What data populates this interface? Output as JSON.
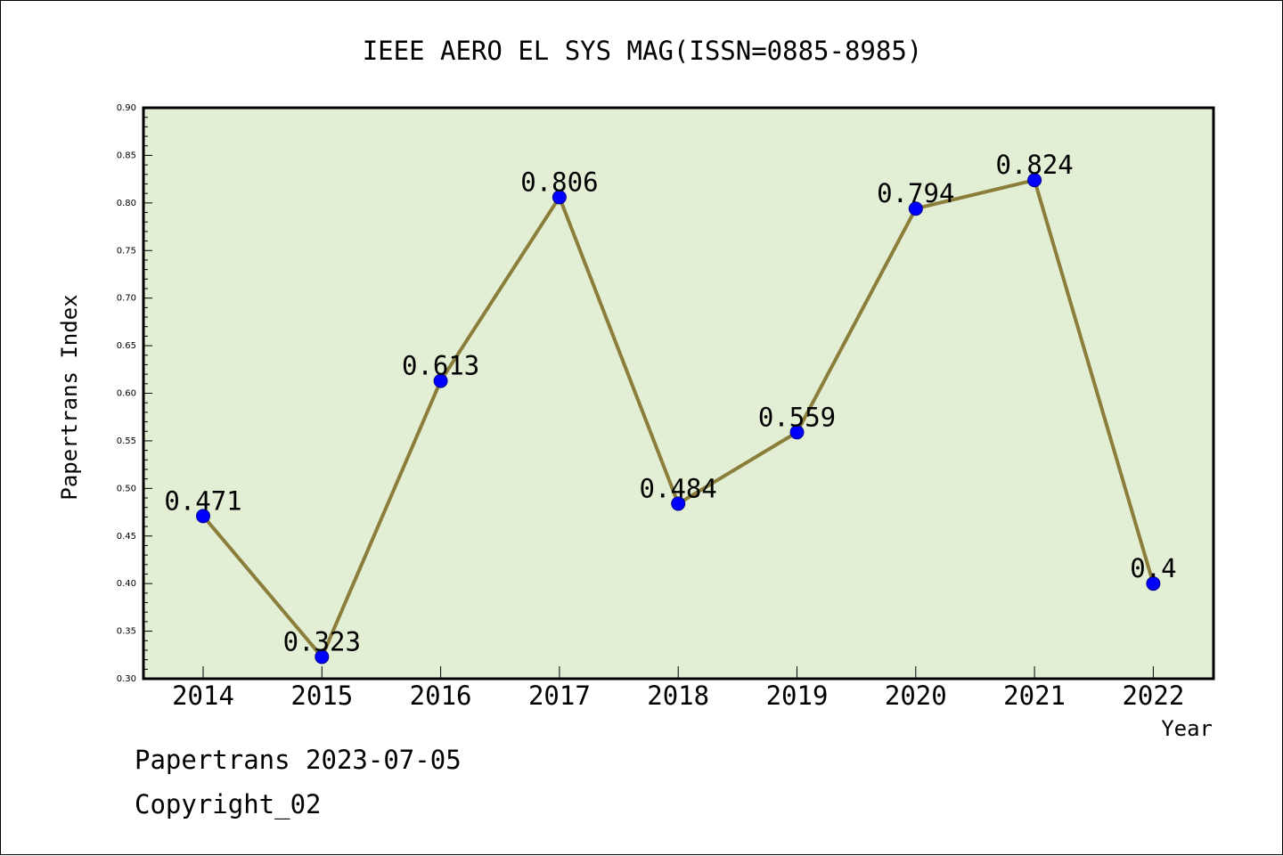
{
  "chart_data": {
    "type": "line",
    "title": "IEEE AERO EL SYS MAG(ISSN=0885-8985)",
    "xlabel": "Year",
    "ylabel": "Papertrans Index",
    "categories": [
      "2014",
      "2015",
      "2016",
      "2017",
      "2018",
      "2019",
      "2020",
      "2021",
      "2022"
    ],
    "values": [
      0.471,
      0.323,
      0.613,
      0.806,
      0.484,
      0.559,
      0.794,
      0.824,
      0.4
    ],
    "data_labels": [
      "0.471",
      "0.323",
      "0.613",
      "0.806",
      "0.484",
      "0.559",
      "0.794",
      "0.824",
      "0.4"
    ],
    "ylim": [
      0.3,
      0.9
    ],
    "yticks": [
      "0.30",
      "0.35",
      "0.40",
      "0.45",
      "0.50",
      "0.55",
      "0.60",
      "0.65",
      "0.70",
      "0.75",
      "0.80",
      "0.85",
      "0.90"
    ],
    "grid": false,
    "colors": {
      "plot_background": "#e2efd5",
      "line": "#8b7d3a",
      "marker": "#0000ff"
    }
  },
  "footer": {
    "line1": "Papertrans 2023-07-05",
    "line2": "Copyright_02"
  }
}
